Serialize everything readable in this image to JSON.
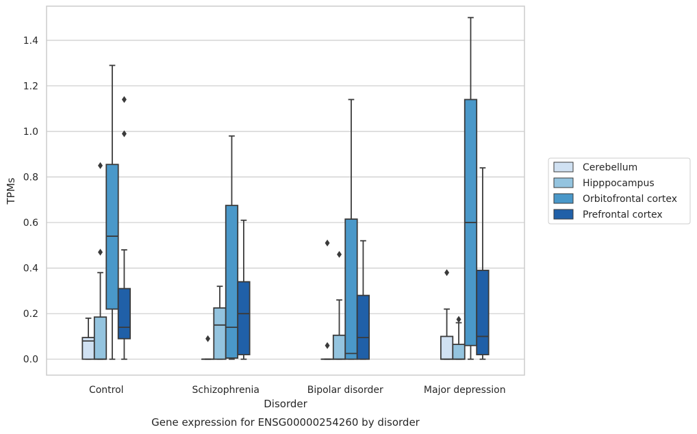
{
  "chart_data": {
    "type": "box",
    "title": "Gene expression for ENSG00000254260 by disorder",
    "xlabel": "Disorder",
    "ylabel": "TPMs",
    "ylim": [
      -0.07,
      1.55
    ],
    "yticks": [
      "0.0",
      "0.2",
      "0.4",
      "0.6",
      "0.8",
      "1.0",
      "1.2",
      "1.4"
    ],
    "grid": true,
    "legend_position": "right",
    "categories": [
      "Control",
      "Schizophrenia",
      "Bipolar disorder",
      "Major depression"
    ],
    "series": [
      {
        "name": "Cerebellum",
        "color": "#d0e1f2",
        "boxes": [
          {
            "whisker_low": 0.0,
            "q1": 0.0,
            "median": 0.08,
            "q3": 0.095,
            "whisker_high": 0.18,
            "outliers": []
          },
          {
            "whisker_low": 0.0,
            "q1": 0.0,
            "median": 0.0,
            "q3": 0.0,
            "whisker_high": 0.0,
            "outliers": [
              0.09
            ]
          },
          {
            "whisker_low": 0.0,
            "q1": 0.0,
            "median": 0.0,
            "q3": 0.0,
            "whisker_high": 0.0,
            "outliers": [
              0.06,
              0.51
            ]
          },
          {
            "whisker_low": 0.0,
            "q1": 0.0,
            "median": 0.0,
            "q3": 0.1,
            "whisker_high": 0.22,
            "outliers": [
              0.38
            ]
          }
        ]
      },
      {
        "name": "Hipppocampus",
        "color": "#94c4df",
        "boxes": [
          {
            "whisker_low": 0.0,
            "q1": 0.0,
            "median": 0.0,
            "q3": 0.185,
            "whisker_high": 0.38,
            "outliers": [
              0.47,
              0.85
            ]
          },
          {
            "whisker_low": 0.0,
            "q1": 0.0,
            "median": 0.15,
            "q3": 0.225,
            "whisker_high": 0.32,
            "outliers": []
          },
          {
            "whisker_low": 0.0,
            "q1": 0.0,
            "median": 0.0,
            "q3": 0.105,
            "whisker_high": 0.26,
            "outliers": [
              0.46
            ]
          },
          {
            "whisker_low": 0.0,
            "q1": 0.0,
            "median": 0.0,
            "q3": 0.065,
            "whisker_high": 0.16,
            "outliers": [
              0.175
            ]
          }
        ]
      },
      {
        "name": "Orbitofrontal cortex",
        "color": "#4a98c9",
        "boxes": [
          {
            "whisker_low": 0.0,
            "q1": 0.22,
            "median": 0.54,
            "q3": 0.855,
            "whisker_high": 1.29,
            "outliers": []
          },
          {
            "whisker_low": 0.0,
            "q1": 0.005,
            "median": 0.14,
            "q3": 0.675,
            "whisker_high": 0.98,
            "outliers": []
          },
          {
            "whisker_low": 0.0,
            "q1": 0.0,
            "median": 0.025,
            "q3": 0.615,
            "whisker_high": 1.14,
            "outliers": []
          },
          {
            "whisker_low": 0.0,
            "q1": 0.06,
            "median": 0.6,
            "q3": 1.14,
            "whisker_high": 1.5,
            "outliers": []
          }
        ]
      },
      {
        "name": "Prefrontal cortex",
        "color": "#2060a8",
        "boxes": [
          {
            "whisker_low": 0.0,
            "q1": 0.09,
            "median": 0.14,
            "q3": 0.31,
            "whisker_high": 0.48,
            "outliers": [
              0.99,
              1.14
            ]
          },
          {
            "whisker_low": 0.0,
            "q1": 0.02,
            "median": 0.2,
            "q3": 0.34,
            "whisker_high": 0.61,
            "outliers": []
          },
          {
            "whisker_low": 0.0,
            "q1": 0.0,
            "median": 0.095,
            "q3": 0.28,
            "whisker_high": 0.52,
            "outliers": []
          },
          {
            "whisker_low": 0.0,
            "q1": 0.02,
            "median": 0.1,
            "q3": 0.39,
            "whisker_high": 0.84,
            "outliers": []
          }
        ]
      }
    ]
  }
}
